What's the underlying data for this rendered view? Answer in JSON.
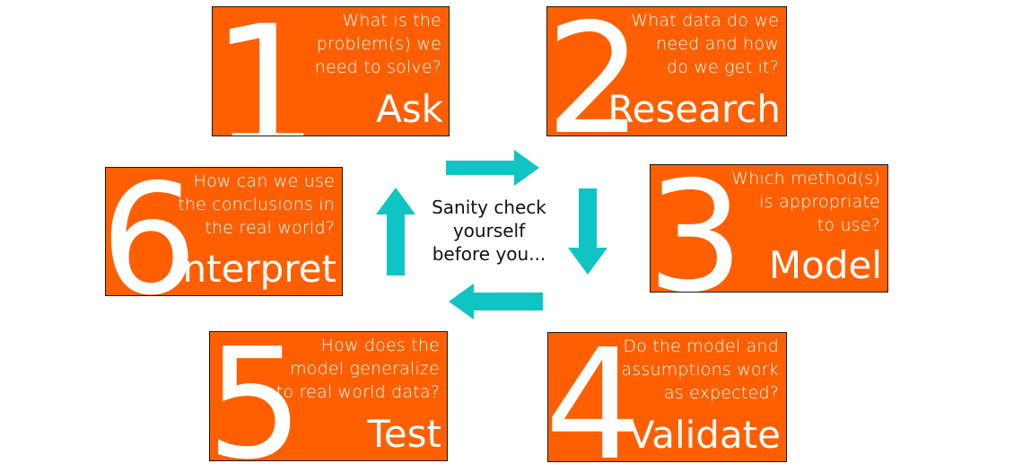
{
  "colors": {
    "box_fill": "#ff5f00",
    "box_border": "#1a1a1a",
    "arrow": "#10c4c4",
    "text_on_box": "#ffffff",
    "center_text": "#111111"
  },
  "center": {
    "text": "Sanity check\nyourself\nbefore you..."
  },
  "steps": [
    {
      "number": "1",
      "question": "What is the\nproblem(s) we\nneed to solve?",
      "label": "Ask"
    },
    {
      "number": "2",
      "question": "What data do we\nneed and how\ndo we get it?",
      "label": "Research"
    },
    {
      "number": "3",
      "question": "Which method(s)\nis appropriate\nto use?",
      "label": "Model"
    },
    {
      "number": "4",
      "question": "Do the model and\nassumptions work\nas expected?",
      "label": "Validate"
    },
    {
      "number": "5",
      "question": "How does the\nmodel generalize\nto real world data?",
      "label": "Test"
    },
    {
      "number": "6",
      "question": "How can we use\nthe conclusions in\nthe real world?",
      "label": "Interpret"
    }
  ],
  "arrows": [
    {
      "from": "1",
      "to": "2",
      "direction": "right"
    },
    {
      "from": "2",
      "to": "3",
      "direction": "down"
    },
    {
      "from": "3",
      "to": "4",
      "direction": "left"
    },
    {
      "from": "5",
      "to": "6",
      "direction": "up"
    }
  ]
}
